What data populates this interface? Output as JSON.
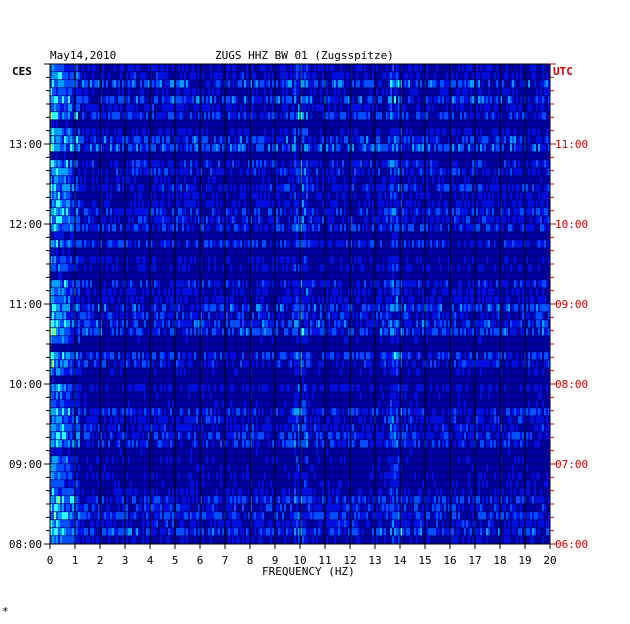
{
  "chart_data": {
    "type": "heatmap",
    "header_date": "May14,2010",
    "title": "ZUGS HHZ BW 01 (Zugsspitze)",
    "xlabel": "FREQUENCY (HZ)",
    "left_axis_label": "CES",
    "right_axis_label": "UTC",
    "x_ticks": [
      "0",
      "1",
      "2",
      "3",
      "4",
      "5",
      "6",
      "7",
      "8",
      "9",
      "10",
      "11",
      "12",
      "13",
      "14",
      "15",
      "16",
      "17",
      "18",
      "19",
      "20"
    ],
    "xlim": [
      0,
      20
    ],
    "left_time_labels": [
      "13:00",
      "12:00",
      "11:00",
      "10:00",
      "09:00",
      "08:00"
    ],
    "right_time_labels": [
      "11:00",
      "10:00",
      "09:00",
      "08:00",
      "07:00",
      "06:00"
    ],
    "time_range_local": [
      "08:00",
      "13:50"
    ],
    "rows": 60,
    "minutes_per_row": 6,
    "grid": true,
    "colormap": [
      "#00009a",
      "#0010e0",
      "#0050ff",
      "#00a0ff",
      "#30ffff",
      "#a0ff60",
      "#ffff00",
      "#ff8000",
      "#ff0000"
    ],
    "axis_color": "#000000",
    "utc_color": "#cc0000",
    "footnote_mark": "*"
  }
}
